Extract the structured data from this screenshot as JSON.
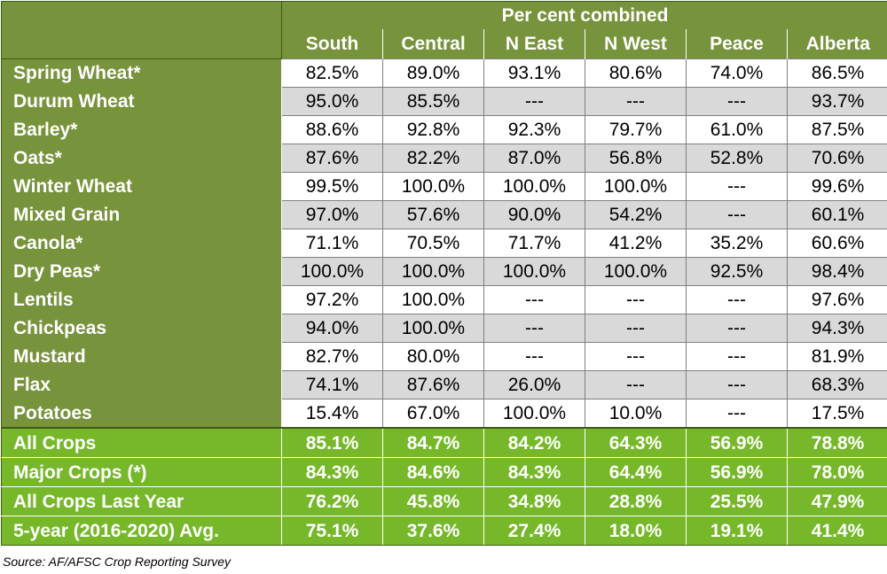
{
  "chart_data": {
    "type": "table",
    "title": "Per cent combined",
    "columns": [
      "South",
      "Central",
      "N East",
      "N West",
      "Peace",
      "Alberta"
    ],
    "rows": [
      {
        "label": "Spring Wheat*",
        "values": [
          "82.5%",
          "89.0%",
          "93.1%",
          "80.6%",
          "74.0%",
          "86.5%"
        ]
      },
      {
        "label": "Durum Wheat",
        "values": [
          "95.0%",
          "85.5%",
          "---",
          "---",
          "---",
          "93.7%"
        ]
      },
      {
        "label": "Barley*",
        "values": [
          "88.6%",
          "92.8%",
          "92.3%",
          "79.7%",
          "61.0%",
          "87.5%"
        ]
      },
      {
        "label": "Oats*",
        "values": [
          "87.6%",
          "82.2%",
          "87.0%",
          "56.8%",
          "52.8%",
          "70.6%"
        ]
      },
      {
        "label": "Winter Wheat",
        "values": [
          "99.5%",
          "100.0%",
          "100.0%",
          "100.0%",
          "---",
          "99.6%"
        ]
      },
      {
        "label": "Mixed Grain",
        "values": [
          "97.0%",
          "57.6%",
          "90.0%",
          "54.2%",
          "---",
          "60.1%"
        ]
      },
      {
        "label": "Canola*",
        "values": [
          "71.1%",
          "70.5%",
          "71.7%",
          "41.2%",
          "35.2%",
          "60.6%"
        ]
      },
      {
        "label": "Dry Peas*",
        "values": [
          "100.0%",
          "100.0%",
          "100.0%",
          "100.0%",
          "92.5%",
          "98.4%"
        ]
      },
      {
        "label": "Lentils",
        "values": [
          "97.2%",
          "100.0%",
          "---",
          "---",
          "---",
          "97.6%"
        ]
      },
      {
        "label": "Chickpeas",
        "values": [
          "94.0%",
          "100.0%",
          "---",
          "---",
          "---",
          "94.3%"
        ]
      },
      {
        "label": "Mustard",
        "values": [
          "82.7%",
          "80.0%",
          "---",
          "---",
          "---",
          "81.9%"
        ]
      },
      {
        "label": "Flax",
        "values": [
          "74.1%",
          "87.6%",
          "26.0%",
          "---",
          "---",
          "68.3%"
        ]
      },
      {
        "label": "Potatoes",
        "values": [
          "15.4%",
          "67.0%",
          "100.0%",
          "10.0%",
          "---",
          "17.5%"
        ]
      }
    ],
    "summary_rows": [
      {
        "label": "All Crops",
        "values": [
          "85.1%",
          "84.7%",
          "84.2%",
          "64.3%",
          "56.9%",
          "78.8%"
        ]
      },
      {
        "label": "Major Crops (*)",
        "values": [
          "84.3%",
          "84.6%",
          "84.3%",
          "64.4%",
          "56.9%",
          "78.0%"
        ]
      },
      {
        "label": "All Crops Last Year",
        "values": [
          "76.2%",
          "45.8%",
          "34.8%",
          "28.8%",
          "25.5%",
          "47.9%"
        ]
      },
      {
        "label": "5-year (2016-2020) Avg.",
        "values": [
          "75.1%",
          "37.6%",
          "27.4%",
          "18.0%",
          "19.1%",
          "41.4%"
        ]
      }
    ],
    "source": "Source: AF/AFSC Crop Reporting Survey"
  }
}
